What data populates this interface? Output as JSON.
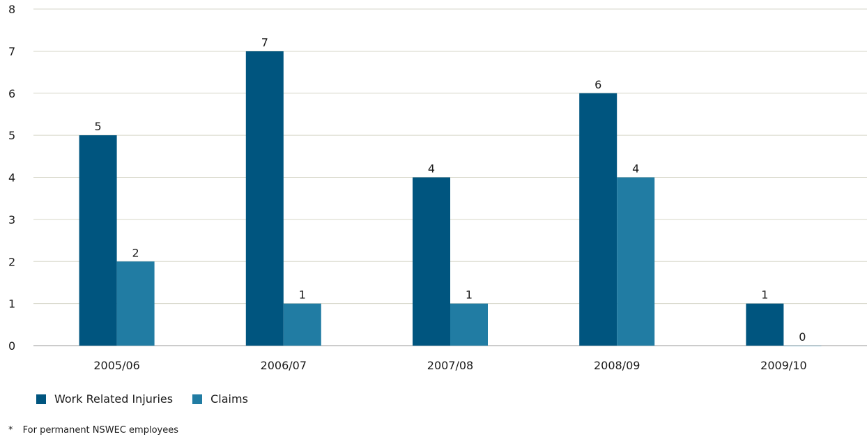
{
  "chart_data": {
    "type": "bar",
    "title": "",
    "xlabel": "",
    "ylabel": "",
    "categories": [
      "2005/06",
      "2006/07",
      "2007/08",
      "2008/09",
      "2009/10"
    ],
    "series": [
      {
        "name": "Work Related Injuries",
        "color": "#00557f",
        "values": [
          5,
          7,
          4,
          6,
          1
        ]
      },
      {
        "name": "Claims",
        "color": "#217ca3",
        "values": [
          2,
          1,
          1,
          4,
          0
        ]
      }
    ],
    "ylim": [
      0,
      8
    ],
    "yticks": [
      0,
      1,
      2,
      3,
      4,
      5,
      6,
      7,
      8
    ],
    "grid": true,
    "legend_position": "bottom-left"
  },
  "footnote": {
    "marker": "*",
    "text": "For permanent NSWEC employees"
  }
}
